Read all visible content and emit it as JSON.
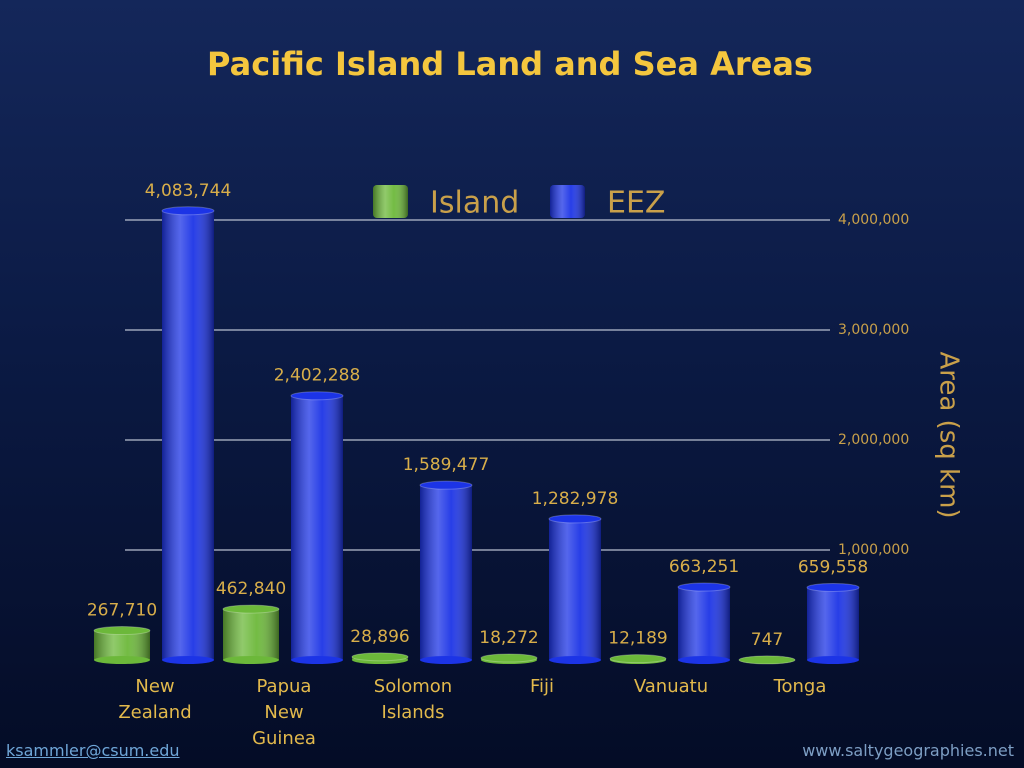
{
  "chart_data": {
    "type": "bar",
    "title": "Pacific Island Land and Sea Areas",
    "categories": [
      "New Zealand",
      "Papua New Guinea",
      "Solomon Islands",
      "Fiji",
      "Vanuatu",
      "Tonga"
    ],
    "series": [
      {
        "name": "Island",
        "color": "#6cb83a",
        "values": [
          267710,
          462840,
          28896,
          18272,
          12189,
          747
        ],
        "value_labels": [
          "267,710",
          "462,840",
          "28,896",
          "18,272",
          "12,189",
          "747"
        ]
      },
      {
        "name": "EEZ",
        "color": "#1c34e6",
        "values": [
          4083744,
          2402288,
          1589477,
          1282978,
          663251,
          659558
        ],
        "value_labels": [
          "4,083,744",
          "2,402,288",
          "1,589,477",
          "1,282,978",
          "663,251",
          "659,558"
        ]
      }
    ],
    "ylabel": "Area (sq km)",
    "ylim": [
      0,
      4000000
    ],
    "yticks": [
      {
        "value": 1000000,
        "label": "1,000,000"
      },
      {
        "value": 2000000,
        "label": "2,000,000"
      },
      {
        "value": 3000000,
        "label": "3,000,000"
      },
      {
        "value": 4000000,
        "label": "4,000,000"
      }
    ],
    "grid": true
  },
  "footer": {
    "contact": "ksammler@csum.edu",
    "website": "www.saltygeographies.net"
  }
}
